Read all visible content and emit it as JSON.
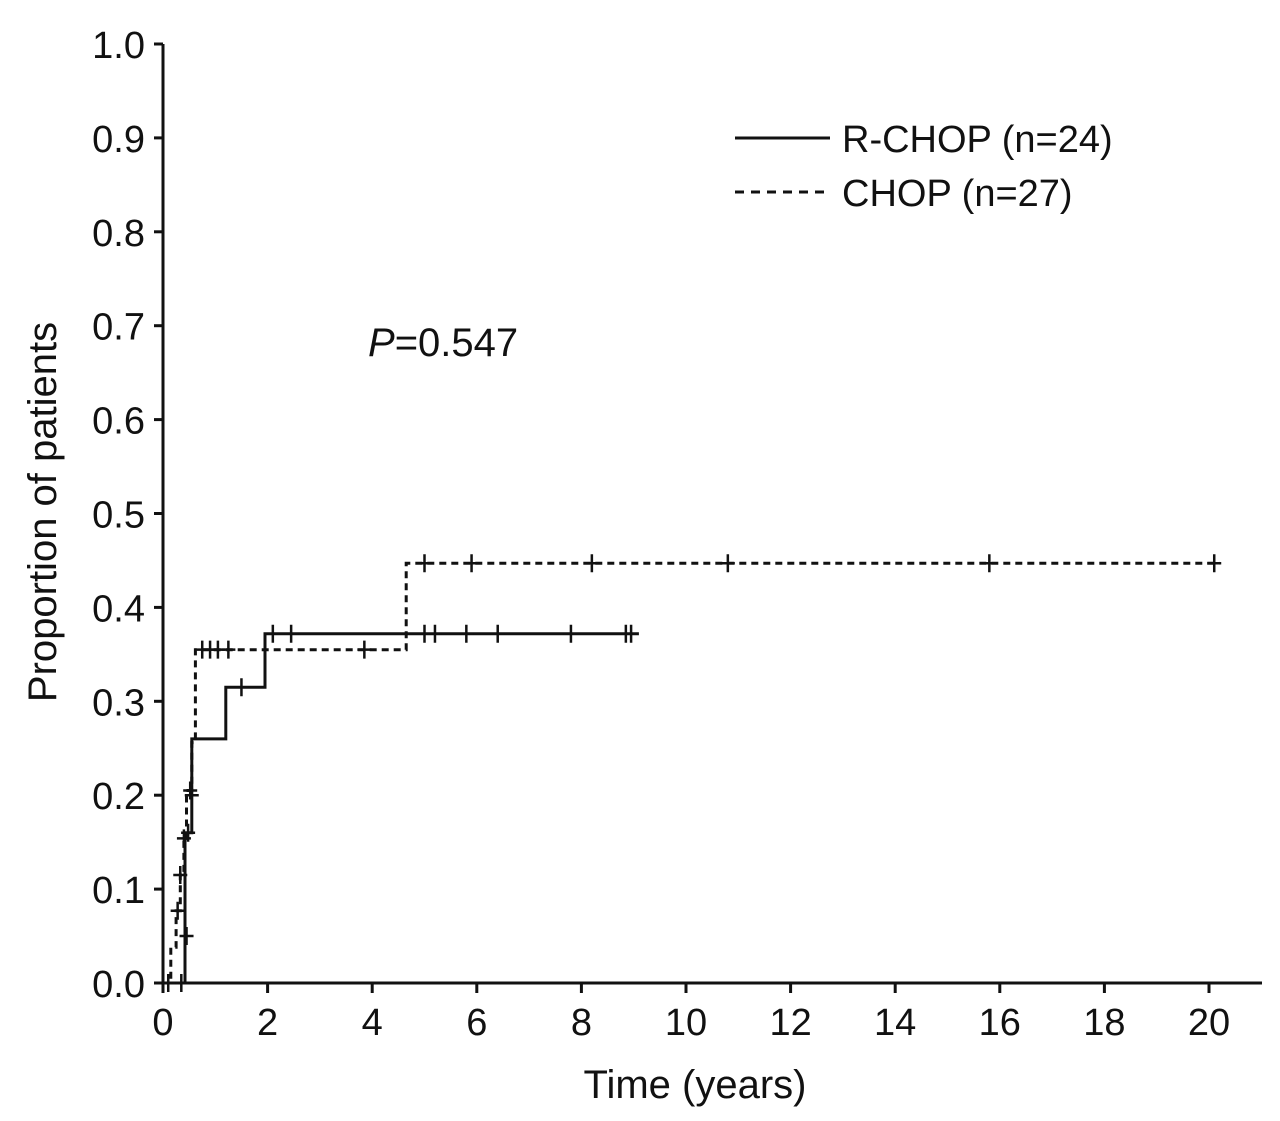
{
  "chart_data": {
    "type": "line",
    "xlabel": "Time (years)",
    "ylabel": "Proportion of patients",
    "xlim": [
      0,
      21
    ],
    "ylim": [
      0,
      1.0
    ],
    "x_ticks": [
      0,
      2,
      4,
      6,
      8,
      10,
      12,
      14,
      16,
      18,
      20
    ],
    "y_ticks": [
      0.0,
      0.1,
      0.2,
      0.3,
      0.4,
      0.5,
      0.6,
      0.7,
      0.8,
      0.9,
      1.0
    ],
    "x_tick_labels": [
      "0",
      "2",
      "4",
      "6",
      "8",
      "10",
      "12",
      "14",
      "16",
      "18",
      "20"
    ],
    "y_tick_labels": [
      "0.0",
      "0.1",
      "0.2",
      "0.3",
      "0.4",
      "0.5",
      "0.6",
      "0.7",
      "0.8",
      "0.9",
      "1.0"
    ],
    "annotation": {
      "p_italic": "P",
      "p_value": "=0.547",
      "x": 4.0,
      "y": 0.7
    },
    "legend": {
      "position": "top-right"
    },
    "series": [
      {
        "name": "R-CHOP (n=24)",
        "style": "solid",
        "color": "#111111",
        "steps": [
          [
            0,
            0
          ],
          [
            0.42,
            0.0
          ],
          [
            0.42,
            0.16
          ],
          [
            0.55,
            0.16
          ],
          [
            0.55,
            0.26
          ],
          [
            1.2,
            0.26
          ],
          [
            1.2,
            0.315
          ],
          [
            1.95,
            0.315
          ],
          [
            1.95,
            0.372
          ],
          [
            9.1,
            0.372
          ]
        ],
        "censors": [
          [
            0.35,
            0.0
          ],
          [
            0.48,
            0.16
          ],
          [
            0.55,
            0.2
          ],
          [
            1.5,
            0.315
          ],
          [
            2.1,
            0.372
          ],
          [
            2.45,
            0.372
          ],
          [
            5.0,
            0.372
          ],
          [
            5.2,
            0.372
          ],
          [
            5.8,
            0.372
          ],
          [
            6.4,
            0.372
          ],
          [
            7.8,
            0.372
          ],
          [
            8.85,
            0.372
          ],
          [
            8.95,
            0.372
          ]
        ]
      },
      {
        "name": "CHOP (n=27)",
        "style": "dashed",
        "color": "#111111",
        "steps": [
          [
            0,
            0
          ],
          [
            0.15,
            0.0
          ],
          [
            0.15,
            0.038
          ],
          [
            0.25,
            0.038
          ],
          [
            0.25,
            0.077
          ],
          [
            0.33,
            0.077
          ],
          [
            0.33,
            0.115
          ],
          [
            0.4,
            0.115
          ],
          [
            0.4,
            0.154
          ],
          [
            0.45,
            0.154
          ],
          [
            0.45,
            0.205
          ],
          [
            0.55,
            0.205
          ],
          [
            0.55,
            0.256
          ],
          [
            0.62,
            0.256
          ],
          [
            0.62,
            0.355
          ],
          [
            4.65,
            0.355
          ],
          [
            4.65,
            0.447
          ],
          [
            20.2,
            0.447
          ]
        ],
        "censors": [
          [
            0.1,
            0.0
          ],
          [
            0.28,
            0.077
          ],
          [
            0.33,
            0.115
          ],
          [
            0.4,
            0.154
          ],
          [
            0.52,
            0.205
          ],
          [
            0.45,
            0.05
          ],
          [
            0.75,
            0.355
          ],
          [
            0.9,
            0.355
          ],
          [
            1.05,
            0.355
          ],
          [
            1.25,
            0.355
          ],
          [
            3.85,
            0.355
          ],
          [
            5.0,
            0.447
          ],
          [
            5.9,
            0.447
          ],
          [
            8.2,
            0.447
          ],
          [
            10.8,
            0.447
          ],
          [
            15.8,
            0.447
          ],
          [
            20.1,
            0.447
          ]
        ]
      }
    ]
  }
}
